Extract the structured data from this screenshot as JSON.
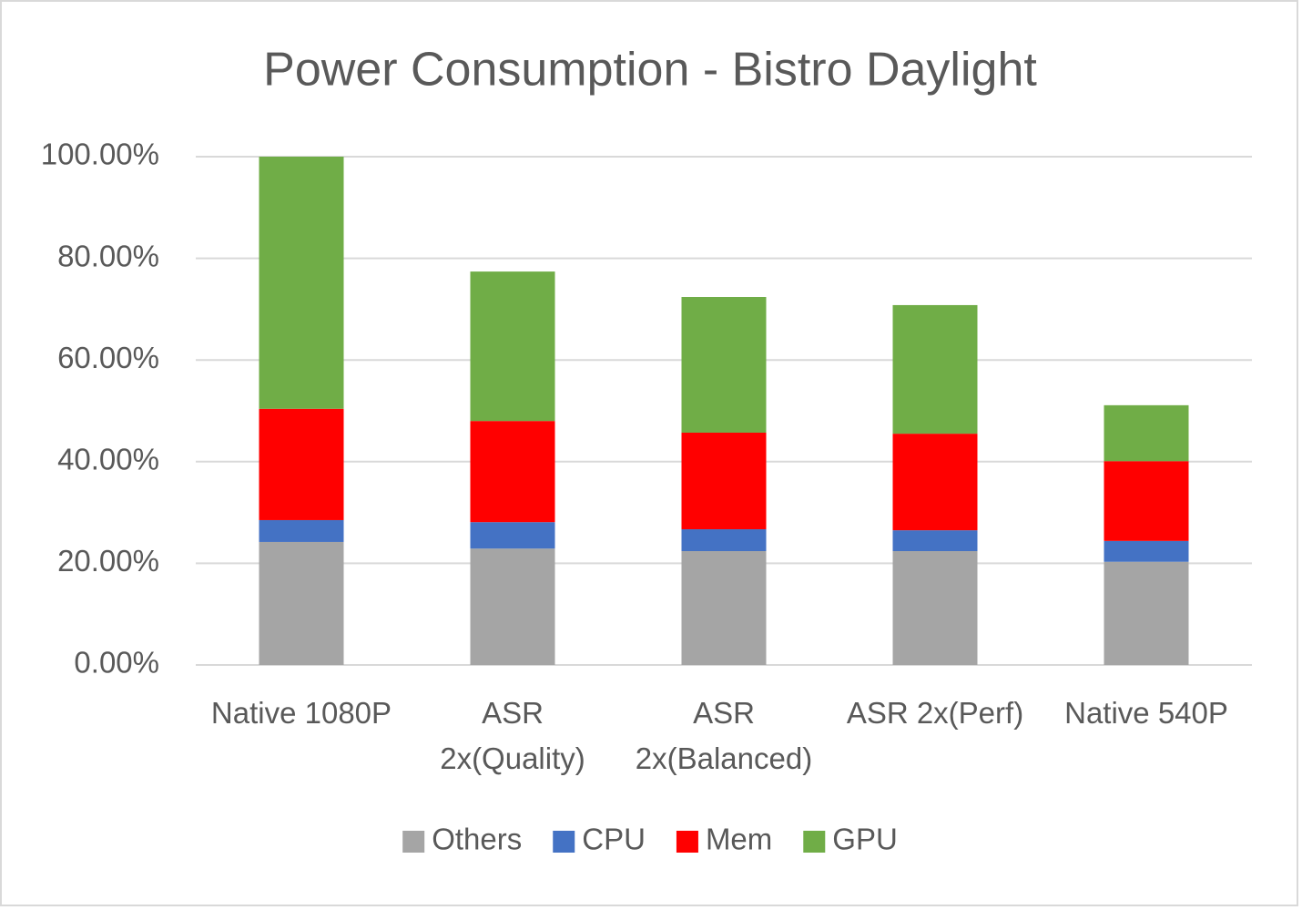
{
  "chart_data": {
    "type": "stacked_bar",
    "title": "Power Consumption  - Bistro Daylight",
    "categories": [
      "Native 1080P",
      "ASR\n2x(Quality)",
      "ASR\n2x(Balanced)",
      "ASR 2x(Perf)",
      "Native 540P"
    ],
    "series": [
      {
        "name": "Others",
        "color": "#a5a5a5",
        "values": [
          24.2,
          22.9,
          22.4,
          22.4,
          20.3
        ]
      },
      {
        "name": "CPU",
        "color": "#4472c4",
        "values": [
          4.3,
          5.2,
          4.3,
          4.1,
          4.1
        ]
      },
      {
        "name": "Mem",
        "color": "#ff0000",
        "values": [
          21.9,
          19.9,
          19.0,
          19.0,
          15.7
        ]
      },
      {
        "name": "GPU",
        "color": "#70ad47",
        "values": [
          49.6,
          29.4,
          26.7,
          25.3,
          11.0
        ]
      }
    ],
    "ylim": [
      0,
      100
    ],
    "yticks": [
      {
        "value": 0,
        "label": "0.00%"
      },
      {
        "value": 20,
        "label": "20.00%"
      },
      {
        "value": 40,
        "label": "40.00%"
      },
      {
        "value": 60,
        "label": "60.00%"
      },
      {
        "value": 80,
        "label": "80.00%"
      },
      {
        "value": 100,
        "label": "100.00%"
      }
    ],
    "grid": true,
    "legend": "bottom"
  }
}
